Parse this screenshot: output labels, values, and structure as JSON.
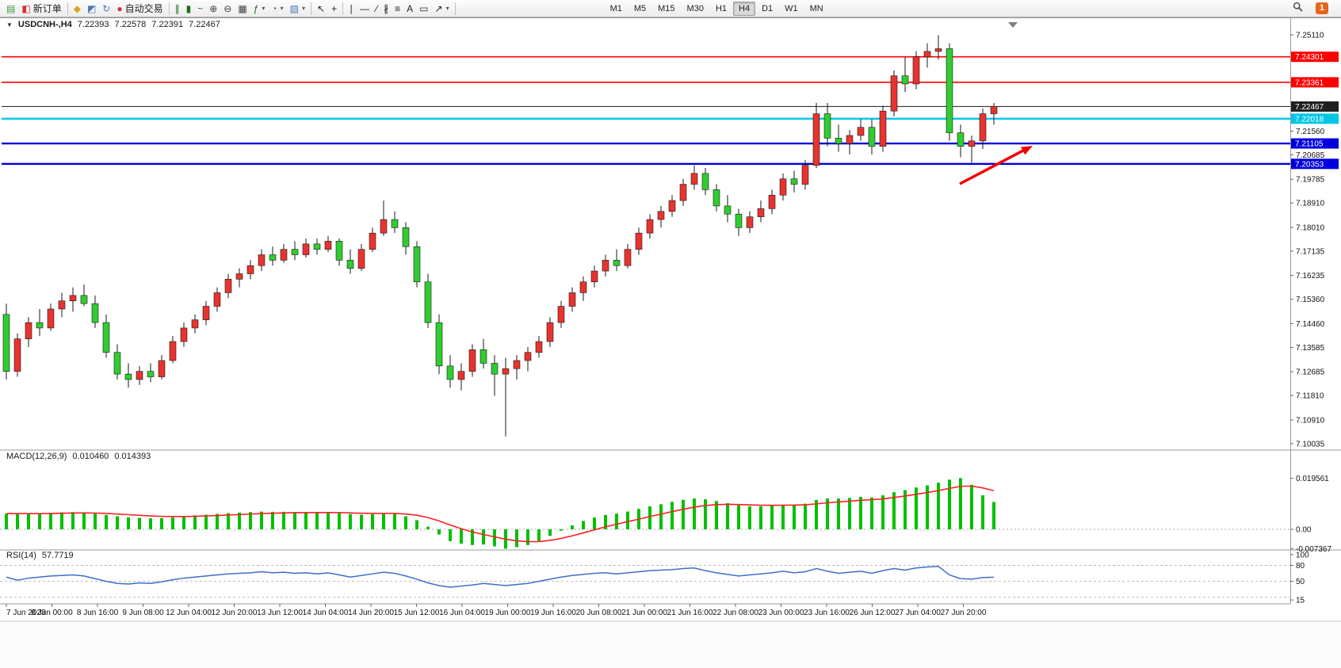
{
  "header": {
    "collapse_glyph": "▼",
    "symbol": "USDCNH-,H4",
    "open": "7.22393",
    "high": "7.22578",
    "low": "7.22391",
    "close": "7.22467"
  },
  "toolbar": {
    "buttons": [
      {
        "name": "new-chart-button",
        "icon": "chart-add-icon",
        "glyph": "▤",
        "color": "#3a9a3a"
      },
      {
        "name": "new-order-button",
        "icon": "new-order-icon",
        "glyph": "◧",
        "color": "#cc3333",
        "label": "新订单"
      },
      {
        "sep": true
      },
      {
        "name": "publish-button",
        "icon": "gold-coin-icon",
        "glyph": "◆",
        "color": "#d9a41e"
      },
      {
        "name": "community-button",
        "icon": "user-icon",
        "glyph": "◩",
        "color": "#4a7ab5"
      },
      {
        "name": "refresh-button",
        "icon": "refresh-icon",
        "glyph": "↻",
        "color": "#4a7ab5"
      },
      {
        "name": "autotrading-button",
        "icon": "autotrading-icon",
        "glyph": "●",
        "color": "#d03030",
        "label": "自动交易"
      },
      {
        "sep": true
      },
      {
        "name": "bar-chart-button",
        "icon": "ohlc-bars-icon",
        "glyph": "∥",
        "color": "#1c6e1c"
      },
      {
        "name": "candlestick-chart-button",
        "icon": "candlestick-icon",
        "glyph": "▮",
        "color": "#1c6e1c"
      },
      {
        "name": "line-chart-button",
        "icon": "line-chart-icon",
        "glyph": "~",
        "color": "#1c6e1c"
      },
      {
        "name": "zoom-in-button",
        "icon": "zoom-in-icon",
        "glyph": "⊕",
        "color": "#3d3d3d"
      },
      {
        "name": "zoom-out-button",
        "icon": "zoom-out-icon",
        "glyph": "⊖",
        "color": "#3d3d3d"
      },
      {
        "name": "tile-windows-button",
        "icon": "tile-windows-icon",
        "glyph": "▦",
        "color": "#3d3d3d"
      },
      {
        "name": "indicators-button",
        "icon": "indicators-icon",
        "glyph": "ƒ",
        "color": "#1c6e1c",
        "dropdown": true
      },
      {
        "name": "periods-button",
        "icon": "clock-icon",
        "glyph": "◔",
        "color": "#4a7ab5",
        "dropdown": true
      },
      {
        "name": "templates-button",
        "icon": "template-icon",
        "glyph": "▧",
        "color": "#4a7ab5",
        "dropdown": true
      },
      {
        "sep": true
      },
      {
        "name": "cursor-button",
        "icon": "cursor-icon",
        "glyph": "↖",
        "color": "#222222"
      },
      {
        "name": "crosshair-button",
        "icon": "crosshair-icon",
        "glyph": "+",
        "color": "#222222"
      },
      {
        "sep": true
      },
      {
        "name": "vertical-line-button",
        "icon": "vertical-line-icon",
        "glyph": "∣",
        "color": "#222222"
      },
      {
        "name": "horizontal-line-button",
        "icon": "horizontal-line-icon",
        "glyph": "―",
        "color": "#222222"
      },
      {
        "name": "trendline-button",
        "icon": "trendline-icon",
        "glyph": "∕",
        "color": "#222222"
      },
      {
        "name": "channel-button",
        "icon": "equidistant-channel-icon",
        "glyph": "∦",
        "color": "#222222"
      },
      {
        "name": "fibonacci-button",
        "icon": "fibonacci-icon",
        "glyph": "≡",
        "color": "#222222"
      },
      {
        "name": "text-button",
        "icon": "text-icon",
        "glyph": "A",
        "color": "#222222"
      },
      {
        "name": "label-button",
        "icon": "text-label-icon",
        "glyph": "▭",
        "color": "#222222"
      },
      {
        "name": "arrows-button",
        "icon": "arrow-objects-icon",
        "glyph": "↗",
        "color": "#222222",
        "dropdown": true
      },
      {
        "sep": true
      }
    ],
    "timeframes": {
      "items": [
        {
          "label": "M1"
        },
        {
          "label": "M5"
        },
        {
          "label": "M15"
        },
        {
          "label": "M30"
        },
        {
          "label": "H1"
        },
        {
          "label": "H4",
          "active": true
        },
        {
          "label": "D1"
        },
        {
          "label": "W1"
        },
        {
          "label": "MN"
        }
      ]
    },
    "right": [
      {
        "name": "search-button",
        "icon": "search-icon"
      },
      {
        "name": "notifications-button",
        "icon": "notification-icon",
        "badge": "1",
        "color": "#e8641c"
      }
    ]
  },
  "indicators": {
    "macd": {
      "name": "MACD(12,26,9)",
      "main": "0.010460",
      "signal": "0.014393",
      "axis": [
        "0.019561",
        "0.00",
        "-0.007367"
      ]
    },
    "rsi": {
      "name": "RSI(14)",
      "value": "57.7719",
      "axis": [
        "100",
        "80",
        "50",
        "15"
      ],
      "levels": [
        80,
        50,
        20
      ]
    }
  },
  "price_axis": [
    {
      "label": "7.25110"
    },
    {
      "label": "7.24301",
      "tag": "#ff0000"
    },
    {
      "label": "7.23361",
      "tag": "#ff0000"
    },
    {
      "label": "7.22467",
      "tag": "#1f1f1f"
    },
    {
      "label": "7.22018",
      "tag": "#00c6e6"
    },
    {
      "label": "7.21560"
    },
    {
      "label": "7.21105",
      "tag": "#0000dd"
    },
    {
      "label": "7.20685"
    },
    {
      "label": "7.20353",
      "tag": "#0000dd"
    },
    {
      "label": "7.19785"
    },
    {
      "label": "7.18910"
    },
    {
      "label": "7.18010"
    },
    {
      "label": "7.17135"
    },
    {
      "label": "7.16235"
    },
    {
      "label": "7.15360"
    },
    {
      "label": "7.14460"
    },
    {
      "label": "7.13585"
    },
    {
      "label": "7.12685"
    },
    {
      "label": "7.11810"
    },
    {
      "label": "7.10910"
    },
    {
      "label": "7.10035"
    }
  ],
  "lines": [
    {
      "name": "resistance-line-1",
      "price": 7.24301,
      "color": "#ff0000",
      "width": 1.6
    },
    {
      "name": "resistance-line-2",
      "price": 7.23361,
      "color": "#ff0000",
      "width": 1.6
    },
    {
      "name": "current-price-line",
      "price": 7.22467,
      "color": "#333333",
      "width": 1.1
    },
    {
      "name": "support-line-1",
      "price": 7.22018,
      "color": "#00c6e6",
      "width": 2.4
    },
    {
      "name": "support-line-2",
      "price": 7.21105,
      "color": "#0000dd",
      "width": 2.4
    },
    {
      "name": "support-line-3",
      "price": 7.20353,
      "color": "#0000dd",
      "width": 2.4
    }
  ],
  "annotation": {
    "name": "trend-arrow",
    "color": "#f20000"
  },
  "chart_data": {
    "type": "candlestick",
    "title": "USDCNH-,H4",
    "symbol": "USDCNH",
    "timeframe": "H4",
    "ohlc_display": [
      7.22393,
      7.22578,
      7.22391,
      7.22467
    ],
    "bull_color": "#e8332e",
    "bear_color": "#30cc30",
    "y_axis_range": [
      7.10035,
      7.2511
    ],
    "grid": false,
    "time_labels": [
      "7 Jun 2023",
      "8 Jun 00:00",
      "8 Jun 16:00",
      "9 Jun 08:00",
      "12 Jun 04:00",
      "12 Jun 20:00",
      "13 Jun 12:00",
      "14 Jun 04:00",
      "14 Jun 20:00",
      "15 Jun 12:00",
      "16 Jun 04:00",
      "19 Jun 00:00",
      "19 Jun 16:00",
      "20 Jun 08:00",
      "21 Jun 00:00",
      "21 Jun 16:00",
      "22 Jun 08:00",
      "23 Jun 00:00",
      "23 Jun 16:00",
      "26 Jun 12:00",
      "27 Jun 04:00",
      "27 Jun 20:00"
    ],
    "candles": [
      [
        7.148,
        7.152,
        7.124,
        7.127
      ],
      [
        7.127,
        7.141,
        7.125,
        7.139
      ],
      [
        7.139,
        7.147,
        7.136,
        7.145
      ],
      [
        7.145,
        7.15,
        7.14,
        7.143
      ],
      [
        7.143,
        7.152,
        7.142,
        7.15
      ],
      [
        7.15,
        7.156,
        7.147,
        7.153
      ],
      [
        7.153,
        7.158,
        7.149,
        7.155
      ],
      [
        7.155,
        7.159,
        7.151,
        7.152
      ],
      [
        7.152,
        7.155,
        7.143,
        7.145
      ],
      [
        7.145,
        7.148,
        7.132,
        7.134
      ],
      [
        7.134,
        7.137,
        7.124,
        7.126
      ],
      [
        7.126,
        7.13,
        7.121,
        7.124
      ],
      [
        7.124,
        7.129,
        7.122,
        7.127
      ],
      [
        7.127,
        7.13,
        7.123,
        7.125
      ],
      [
        7.125,
        7.133,
        7.124,
        7.131
      ],
      [
        7.131,
        7.14,
        7.13,
        7.138
      ],
      [
        7.138,
        7.145,
        7.136,
        7.143
      ],
      [
        7.143,
        7.148,
        7.141,
        7.146
      ],
      [
        7.146,
        7.153,
        7.144,
        7.151
      ],
      [
        7.151,
        7.158,
        7.149,
        7.156
      ],
      [
        7.156,
        7.163,
        7.154,
        7.161
      ],
      [
        7.161,
        7.165,
        7.158,
        7.163
      ],
      [
        7.163,
        7.168,
        7.161,
        7.166
      ],
      [
        7.166,
        7.172,
        7.164,
        7.17
      ],
      [
        7.17,
        7.173,
        7.166,
        7.168
      ],
      [
        7.168,
        7.174,
        7.167,
        7.172
      ],
      [
        7.172,
        7.175,
        7.168,
        7.17
      ],
      [
        7.17,
        7.176,
        7.169,
        7.174
      ],
      [
        7.174,
        7.176,
        7.17,
        7.172
      ],
      [
        7.172,
        7.177,
        7.171,
        7.175
      ],
      [
        7.175,
        7.176,
        7.166,
        7.168
      ],
      [
        7.168,
        7.172,
        7.163,
        7.165
      ],
      [
        7.165,
        7.174,
        7.164,
        7.172
      ],
      [
        7.172,
        7.18,
        7.171,
        7.178
      ],
      [
        7.178,
        7.19,
        7.177,
        7.183
      ],
      [
        7.183,
        7.186,
        7.178,
        7.18
      ],
      [
        7.18,
        7.182,
        7.17,
        7.173
      ],
      [
        7.173,
        7.175,
        7.158,
        7.16
      ],
      [
        7.16,
        7.163,
        7.143,
        7.145
      ],
      [
        7.145,
        7.148,
        7.126,
        7.129
      ],
      [
        7.129,
        7.133,
        7.121,
        7.124
      ],
      [
        7.124,
        7.13,
        7.12,
        7.127
      ],
      [
        7.127,
        7.137,
        7.125,
        7.135
      ],
      [
        7.135,
        7.139,
        7.128,
        7.13
      ],
      [
        7.13,
        7.133,
        7.118,
        7.126
      ],
      [
        7.126,
        7.132,
        7.103,
        7.128
      ],
      [
        7.128,
        7.133,
        7.124,
        7.131
      ],
      [
        7.131,
        7.136,
        7.127,
        7.134
      ],
      [
        7.134,
        7.14,
        7.132,
        7.138
      ],
      [
        7.138,
        7.147,
        7.136,
        7.145
      ],
      [
        7.145,
        7.153,
        7.143,
        7.151
      ],
      [
        7.151,
        7.158,
        7.149,
        7.156
      ],
      [
        7.156,
        7.162,
        7.153,
        7.16
      ],
      [
        7.16,
        7.166,
        7.158,
        7.164
      ],
      [
        7.164,
        7.17,
        7.162,
        7.168
      ],
      [
        7.168,
        7.172,
        7.164,
        7.166
      ],
      [
        7.166,
        7.174,
        7.165,
        7.172
      ],
      [
        7.172,
        7.18,
        7.17,
        7.178
      ],
      [
        7.178,
        7.185,
        7.176,
        7.183
      ],
      [
        7.183,
        7.188,
        7.18,
        7.186
      ],
      [
        7.186,
        7.192,
        7.184,
        7.19
      ],
      [
        7.19,
        7.198,
        7.188,
        7.196
      ],
      [
        7.196,
        7.203,
        7.194,
        7.2
      ],
      [
        7.2,
        7.202,
        7.192,
        7.194
      ],
      [
        7.194,
        7.196,
        7.186,
        7.188
      ],
      [
        7.188,
        7.192,
        7.182,
        7.185
      ],
      [
        7.185,
        7.187,
        7.177,
        7.18
      ],
      [
        7.18,
        7.186,
        7.178,
        7.184
      ],
      [
        7.184,
        7.19,
        7.182,
        7.187
      ],
      [
        7.187,
        7.194,
        7.185,
        7.192
      ],
      [
        7.192,
        7.2,
        7.19,
        7.198
      ],
      [
        7.198,
        7.201,
        7.193,
        7.196
      ],
      [
        7.196,
        7.205,
        7.194,
        7.203
      ],
      [
        7.203,
        7.226,
        7.202,
        7.222
      ],
      [
        7.222,
        7.226,
        7.21,
        7.213
      ],
      [
        7.213,
        7.218,
        7.208,
        7.211
      ],
      [
        7.211,
        7.216,
        7.207,
        7.214
      ],
      [
        7.214,
        7.22,
        7.212,
        7.217
      ],
      [
        7.217,
        7.22,
        7.207,
        7.21
      ],
      [
        7.21,
        7.225,
        7.208,
        7.223
      ],
      [
        7.223,
        7.238,
        7.221,
        7.236
      ],
      [
        7.236,
        7.243,
        7.23,
        7.233
      ],
      [
        7.233,
        7.245,
        7.231,
        7.243
      ],
      [
        7.243,
        7.248,
        7.239,
        7.245
      ],
      [
        7.245,
        7.251,
        7.242,
        7.246
      ],
      [
        7.246,
        7.248,
        7.212,
        7.215
      ],
      [
        7.215,
        7.218,
        7.206,
        7.21
      ],
      [
        7.21,
        7.214,
        7.204,
        7.212
      ],
      [
        7.212,
        7.224,
        7.209,
        7.222
      ],
      [
        7.222,
        7.226,
        7.218,
        7.2247
      ]
    ],
    "sub_charts": [
      {
        "type": "macd-histogram",
        "name": "MACD(12,26,9)",
        "histogram_color": "#00c000",
        "signal_color": "#ff2020",
        "signal_period": 9,
        "range": [
          -0.007367,
          0.019561
        ],
        "values": [
          0.006,
          0.0062,
          0.0058,
          0.006,
          0.0063,
          0.0065,
          0.0066,
          0.0064,
          0.006,
          0.0055,
          0.005,
          0.0046,
          0.0044,
          0.0042,
          0.0043,
          0.0046,
          0.005,
          0.0053,
          0.0056,
          0.0059,
          0.0062,
          0.0064,
          0.0066,
          0.0068,
          0.0067,
          0.0067,
          0.0066,
          0.0066,
          0.0065,
          0.0065,
          0.0063,
          0.0058,
          0.0056,
          0.0058,
          0.0062,
          0.006,
          0.005,
          0.0035,
          0.001,
          -0.002,
          -0.0045,
          -0.0055,
          -0.006,
          -0.0058,
          -0.0065,
          -0.0074,
          -0.0068,
          -0.006,
          -0.0045,
          -0.0025,
          -0.0005,
          0.0015,
          0.0032,
          0.0045,
          0.0055,
          0.006,
          0.0068,
          0.0078,
          0.0088,
          0.0096,
          0.0105,
          0.0113,
          0.0118,
          0.0115,
          0.0108,
          0.01,
          0.0092,
          0.0088,
          0.0088,
          0.009,
          0.0094,
          0.0094,
          0.0098,
          0.0112,
          0.0118,
          0.0118,
          0.012,
          0.0124,
          0.0122,
          0.013,
          0.0142,
          0.015,
          0.016,
          0.0168,
          0.0178,
          0.019,
          0.0196,
          0.017,
          0.013,
          0.01046
        ]
      },
      {
        "type": "rsi-line",
        "name": "RSI(14)",
        "line_color": "#3f6fc9",
        "range": [
          15,
          100
        ],
        "values": [
          58,
          52,
          56,
          58,
          60,
          61,
          62,
          60,
          55,
          50,
          46,
          45,
          47,
          46,
          49,
          53,
          56,
          58,
          60,
          62,
          64,
          65,
          66,
          68,
          66,
          67,
          65,
          66,
          64,
          66,
          62,
          58,
          61,
          64,
          67,
          65,
          60,
          54,
          47,
          42,
          39,
          41,
          43,
          46,
          44,
          42,
          44,
          46,
          50,
          54,
          58,
          61,
          63,
          65,
          66,
          64,
          66,
          68,
          70,
          71,
          72,
          74,
          75,
          70,
          66,
          63,
          60,
          62,
          64,
          66,
          69,
          66,
          68,
          74,
          69,
          65,
          67,
          69,
          65,
          70,
          74,
          71,
          75,
          77,
          78,
          62,
          55,
          54,
          57,
          57.77
        ]
      }
    ]
  }
}
